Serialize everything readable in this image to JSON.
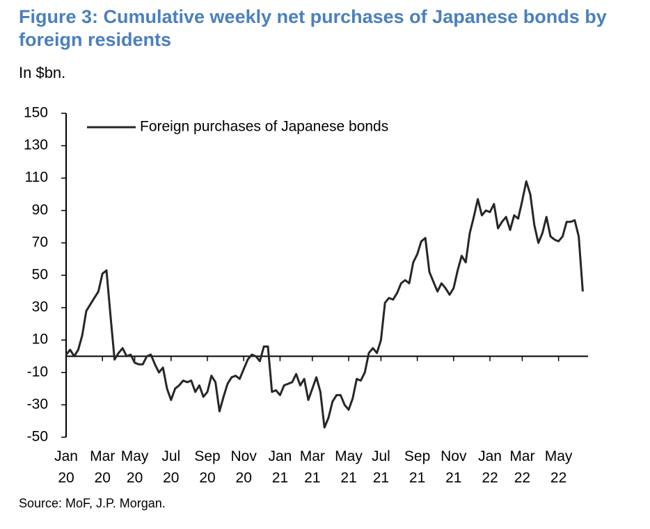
{
  "chart_data": {
    "type": "line",
    "title": "Figure 3: Cumulative weekly net purchases of Japanese bonds by foreign residents",
    "subtitle": "In $bn.",
    "source": "Source: MoF, J.P. Morgan.",
    "categories": [
      "Jan 20",
      null,
      null,
      null,
      null,
      null,
      null,
      null,
      null,
      "Mar 20",
      null,
      null,
      null,
      null,
      null,
      null,
      null,
      "May 20",
      null,
      null,
      null,
      null,
      null,
      null,
      null,
      null,
      "Jul 20",
      null,
      null,
      null,
      null,
      null,
      null,
      null,
      null,
      "Sep 20",
      null,
      null,
      null,
      null,
      null,
      null,
      null,
      null,
      "Nov 20",
      null,
      null,
      null,
      null,
      null,
      null,
      null,
      null,
      "Jan 21",
      null,
      null,
      null,
      null,
      null,
      null,
      null,
      "Mar 21",
      null,
      null,
      null,
      null,
      null,
      null,
      null,
      null,
      "May 21",
      null,
      null,
      null,
      null,
      null,
      null,
      null,
      "Jul 21",
      null,
      null,
      null,
      null,
      null,
      null,
      null,
      null,
      "Sep 21",
      null,
      null,
      null,
      null,
      null,
      null,
      null,
      null,
      "Nov 21",
      null,
      null,
      null,
      null,
      null,
      null,
      null,
      null,
      "Jan 22",
      null,
      null,
      null,
      null,
      null,
      null,
      null,
      "Mar 22",
      null,
      null,
      null,
      null,
      null,
      null,
      null,
      null,
      "May 22",
      null,
      null,
      null,
      null,
      null,
      null
    ],
    "series": [
      {
        "name": "Foreign purchases of Japanese bonds",
        "color": "#262626",
        "values": [
          1,
          4,
          0,
          4,
          13,
          28,
          32,
          36,
          40,
          51,
          53,
          25,
          -2,
          2,
          5,
          0,
          1,
          -4,
          -5,
          -5,
          0,
          1,
          -5,
          -10,
          -7,
          -20,
          -27,
          -20,
          -18,
          -15,
          -16,
          -15,
          -22,
          -18,
          -25,
          -22,
          -12,
          -16,
          -34,
          -25,
          -17,
          -13,
          -12,
          -14,
          -8,
          -2,
          1,
          0,
          -3,
          6,
          6,
          -22,
          -21,
          -24,
          -18,
          -17,
          -16,
          -11,
          -18,
          -14,
          -27,
          -20,
          -13,
          -22,
          -44,
          -38,
          -28,
          -24,
          -24,
          -30,
          -33,
          -26,
          -14,
          -15,
          -10,
          2,
          5,
          2,
          10,
          33,
          36,
          35,
          39,
          45,
          47,
          45,
          58,
          63,
          71,
          73,
          52,
          46,
          40,
          45,
          42,
          38,
          42,
          53,
          62,
          58,
          76,
          86,
          97,
          87,
          90,
          89,
          94,
          79,
          83,
          86,
          78,
          87,
          85,
          96,
          108,
          100,
          81,
          70,
          76,
          86,
          74,
          72,
          71,
          74,
          83,
          83,
          84,
          74,
          40
        ]
      }
    ],
    "ylim": [
      -50,
      150
    ],
    "yticks": [
      -50,
      -30,
      -10,
      10,
      30,
      50,
      70,
      90,
      110,
      130,
      150
    ],
    "legend": "top-left"
  }
}
